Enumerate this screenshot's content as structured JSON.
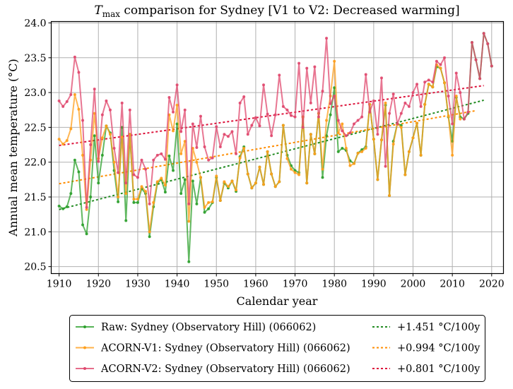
{
  "chart_data": {
    "type": "line",
    "title_main": "T",
    "title_sub": "max",
    "title_rest": " comparison for Sydney   [V1 to V2: Decreased warming]",
    "xlabel": "Calendar year",
    "ylabel": "Annual mean temperature (°C)",
    "xlim": [
      1908,
      2023
    ],
    "ylim": [
      20.4,
      24.02
    ],
    "xticks": [
      1910,
      1920,
      1930,
      1940,
      1950,
      1960,
      1970,
      1980,
      1990,
      2000,
      2010,
      2020
    ],
    "yticks": [
      20.5,
      21.0,
      21.5,
      22.0,
      22.5,
      23.0,
      23.5,
      24.0
    ],
    "ytick_labels": [
      "20.5",
      "21.0",
      "21.5",
      "22.0",
      "22.5",
      "23.0",
      "23.5",
      "24.0"
    ],
    "grid": true,
    "legend_position": "bottom-center",
    "series": [
      {
        "name": "Raw: Sydney (Observatory Hill) (066062)",
        "color": "#2ca02c",
        "start_year": 1910,
        "values": [
          21.37,
          21.33,
          21.36,
          21.55,
          22.03,
          21.86,
          21.1,
          20.97,
          21.5,
          22.38,
          21.7,
          22.1,
          22.52,
          22.42,
          21.88,
          21.43,
          22.5,
          21.16,
          22.4,
          21.42,
          21.42,
          21.62,
          21.55,
          20.93,
          21.36,
          21.7,
          21.75,
          21.57,
          22.09,
          21.88,
          22.55,
          21.55,
          21.75,
          20.57,
          21.73,
          21.4,
          21.78,
          21.28,
          21.33,
          21.42,
          21.78,
          21.45,
          21.7,
          21.63,
          21.73,
          21.58,
          22.08,
          22.22,
          21.83,
          21.63,
          21.7,
          21.93,
          21.68,
          22.15,
          21.83,
          21.65,
          21.72,
          22.53,
          22.1,
          21.95,
          21.88,
          21.85,
          22.65,
          21.7,
          22.4,
          22.12,
          22.7,
          21.78,
          22.38,
          22.68,
          23.07,
          22.15,
          22.2,
          22.17,
          22.02,
          21.98,
          22.13,
          22.18,
          22.22,
          22.83,
          22.33,
          21.75,
          22.32,
          22.82,
          21.52,
          22.3,
          22.55,
          22.53,
          21.82,
          22.15,
          22.35,
          22.56,
          22.1,
          22.83,
          23.12,
          23.08,
          23.37,
          23.35,
          23.14,
          22.65,
          22.3,
          22.93,
          22.65,
          22.62,
          22.7,
          23.72,
          23.47,
          23.2,
          23.85,
          23.7,
          23.38
        ]
      },
      {
        "name": "ACORN-V1: Sydney (Observatory Hill) (066062)",
        "color": "#ff9f1c",
        "start_year": 1910,
        "values": [
          22.33,
          22.26,
          22.31,
          22.48,
          22.97,
          22.76,
          22.1,
          21.32,
          22.03,
          22.7,
          22.05,
          22.35,
          22.52,
          22.4,
          22.0,
          21.5,
          22.36,
          21.55,
          22.4,
          21.47,
          21.47,
          21.65,
          21.58,
          21.0,
          21.42,
          21.72,
          21.77,
          21.67,
          22.68,
          22.45,
          22.82,
          22.12,
          22.3,
          21.15,
          22.2,
          22.0,
          21.78,
          21.35,
          21.42,
          21.43,
          21.8,
          21.45,
          21.72,
          21.65,
          21.73,
          21.6,
          22.06,
          22.2,
          21.83,
          21.63,
          21.7,
          21.93,
          21.68,
          22.15,
          21.83,
          21.65,
          21.72,
          22.53,
          22.05,
          21.9,
          21.85,
          21.82,
          22.65,
          21.7,
          22.4,
          22.12,
          22.7,
          21.9,
          22.6,
          22.95,
          23.45,
          22.42,
          22.55,
          22.2,
          21.95,
          21.98,
          22.13,
          22.15,
          22.2,
          22.83,
          22.33,
          21.75,
          22.32,
          22.85,
          21.52,
          22.26,
          22.55,
          22.5,
          21.82,
          22.15,
          22.35,
          22.56,
          22.1,
          22.83,
          23.12,
          23.08,
          23.4,
          23.35,
          23.14,
          22.66,
          22.1,
          22.95,
          22.62
        ]
      },
      {
        "name": "ACORN-V2: Sydney (Observatory Hill) (066062)",
        "color": "#e0486e",
        "start_year": 1910,
        "values": [
          22.88,
          22.8,
          22.87,
          22.97,
          23.51,
          23.29,
          22.6,
          21.35,
          22.25,
          23.05,
          22.01,
          22.68,
          22.88,
          22.75,
          22.2,
          21.85,
          22.85,
          21.7,
          22.75,
          21.82,
          21.78,
          22.03,
          21.9,
          21.4,
          22.03,
          22.1,
          22.12,
          22.04,
          22.93,
          22.72,
          23.11,
          22.44,
          22.75,
          21.4,
          22.55,
          22.21,
          22.66,
          22.22,
          22.03,
          22.06,
          22.51,
          22.22,
          22.4,
          22.37,
          22.44,
          22.12,
          22.85,
          22.94,
          22.4,
          22.53,
          22.64,
          22.52,
          23.11,
          22.69,
          22.38,
          22.68,
          23.25,
          22.8,
          22.75,
          22.67,
          22.65,
          23.42,
          22.5,
          23.35,
          22.85,
          23.37,
          22.65,
          23.02,
          23.78,
          22.84,
          22.95,
          22.6,
          22.45,
          22.38,
          22.42,
          22.55,
          22.6,
          22.65,
          23.26,
          22.72,
          22.88,
          22.4,
          23.21,
          21.94,
          22.7,
          22.98,
          22.55,
          22.7,
          22.85,
          22.8,
          23.0,
          23.12,
          22.8,
          23.15,
          23.18,
          23.15,
          23.45,
          23.4,
          23.5,
          22.95,
          22.55,
          23.28,
          23.0,
          22.62,
          22.72,
          23.72,
          23.47,
          23.2,
          23.85,
          23.7,
          23.38
        ]
      }
    ],
    "trends": [
      {
        "label": "+1.451 °C/100y",
        "color": "#228b22",
        "slope_per_100y": 1.451,
        "start": [
          1910,
          21.32
        ],
        "end": [
          2018,
          22.89
        ]
      },
      {
        "label": "+0.994 °C/100y",
        "color": "#ff8c00",
        "slope_per_100y": 0.994,
        "start": [
          1910,
          21.69
        ],
        "end": [
          2016,
          22.74
        ]
      },
      {
        "label": "+0.801 °C/100y",
        "color": "#dc143c",
        "slope_per_100y": 0.801,
        "start": [
          1910,
          22.24
        ],
        "end": [
          2018,
          23.1
        ]
      }
    ]
  },
  "legend": {
    "items": [
      {
        "label": "Raw: Sydney (Observatory Hill) (066062)",
        "color": "#2ca02c"
      },
      {
        "label": "ACORN-V1: Sydney (Observatory Hill) (066062)",
        "color": "#ff9f1c"
      },
      {
        "label": "ACORN-V2: Sydney (Observatory Hill) (066062)",
        "color": "#e0486e"
      }
    ],
    "trend_items": [
      {
        "label": "+1.451 °C/100y",
        "color": "#228b22"
      },
      {
        "label": "+0.994 °C/100y",
        "color": "#ff8c00"
      },
      {
        "label": "+0.801 °C/100y",
        "color": "#dc143c"
      }
    ]
  }
}
